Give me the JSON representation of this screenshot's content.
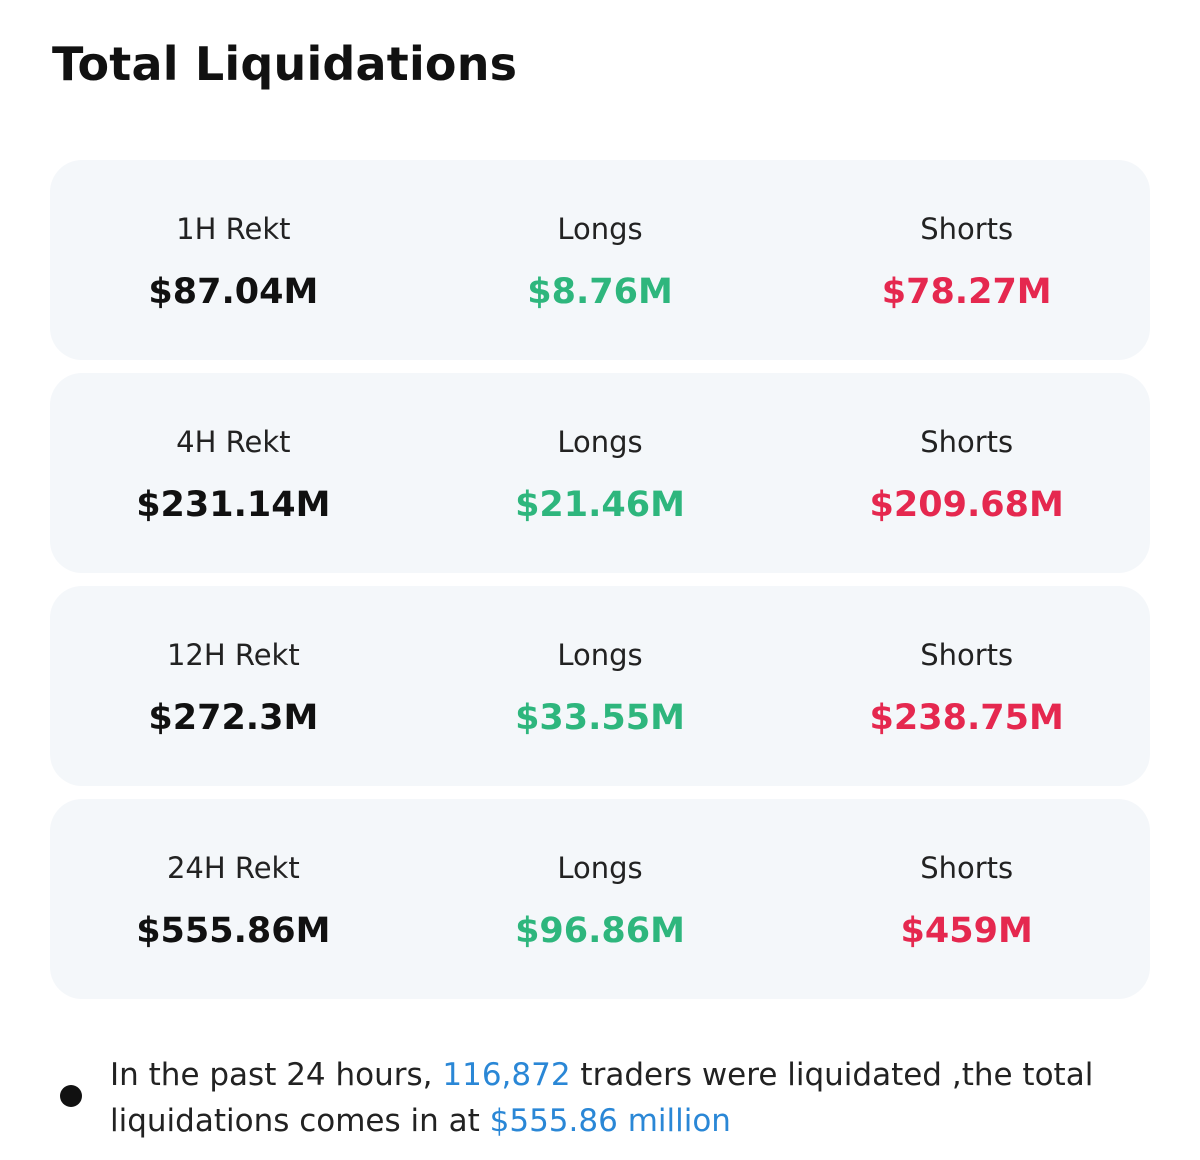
{
  "title": "Total Liquidations",
  "colors": {
    "card_bg": "#f4f7fa",
    "longs": "#2eb67d",
    "shorts": "#e5284f",
    "highlight": "#2a87d6"
  },
  "periods": [
    {
      "label": "1H Rekt",
      "total": "$87.04M",
      "longs_label": "Longs",
      "longs": "$8.76M",
      "shorts_label": "Shorts",
      "shorts": "$78.27M"
    },
    {
      "label": "4H Rekt",
      "total": "$231.14M",
      "longs_label": "Longs",
      "longs": "$21.46M",
      "shorts_label": "Shorts",
      "shorts": "$209.68M"
    },
    {
      "label": "12H Rekt",
      "total": "$272.3M",
      "longs_label": "Longs",
      "longs": "$33.55M",
      "shorts_label": "Shorts",
      "shorts": "$238.75M"
    },
    {
      "label": "24H Rekt",
      "total": "$555.86M",
      "longs_label": "Longs",
      "longs": "$96.86M",
      "shorts_label": "Shorts",
      "shorts": "$459M"
    }
  ],
  "summary": {
    "prefix": "In the past 24 hours, ",
    "traders": "116,872",
    "middle": " traders were liquidated ,the total liquidations comes in at ",
    "amount": "$555.86 million"
  }
}
